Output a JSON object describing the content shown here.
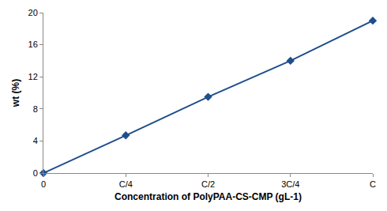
{
  "chart_data": {
    "type": "line",
    "x_label": "Concentration of PolyPAA-CS-CMP (gL-1)",
    "y_label": "wt (%)",
    "categories": [
      "0",
      "C/4",
      "C/2",
      "3C/4",
      "C"
    ],
    "values": [
      0,
      4.7,
      9.5,
      14,
      19
    ],
    "color": "#1f4e8c",
    "marker": "diamond",
    "line_style": "solid",
    "ylim": [
      0,
      20
    ],
    "yticks": [
      0,
      4,
      8,
      12,
      16,
      20
    ],
    "grid": false
  }
}
